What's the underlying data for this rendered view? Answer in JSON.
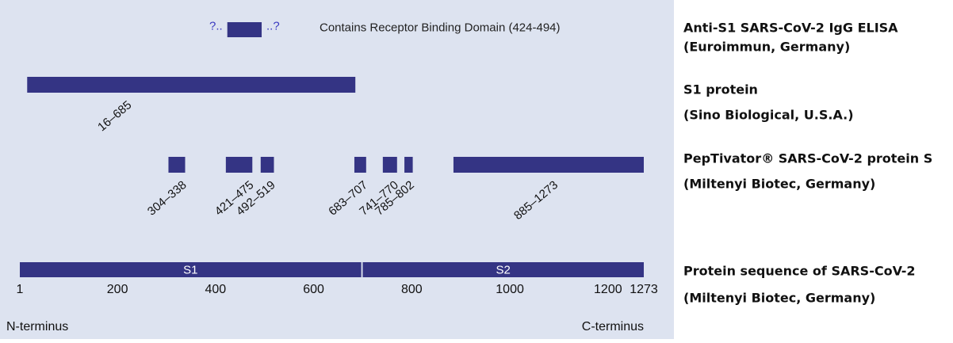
{
  "chart_data": {
    "type": "range",
    "xlim": [
      1,
      1273
    ],
    "xticks": [
      1,
      200,
      400,
      600,
      800,
      1000,
      1200,
      1273
    ],
    "color": "#343484",
    "n_label": "N-terminus",
    "c_label": "C-terminus",
    "rows": [
      {
        "title": "Anti-S1 SARS-CoV-2 IgG ELISA",
        "subtitle": "(Euroimmun, Germany)",
        "note": "Contains Receptor Binding Domain (424-494)",
        "prefix": "?..",
        "suffix": "..?",
        "ranges": [
          {
            "start": 424,
            "end": 494
          }
        ]
      },
      {
        "title": "S1 protein",
        "subtitle": "(Sino Biological, U.S.A.)",
        "ranges": [
          {
            "start": 16,
            "end": 685,
            "label": "16–685"
          }
        ]
      },
      {
        "title": "PepTivator® SARS-CoV-2 protein S",
        "subtitle": "(Miltenyi Biotec, Germany)",
        "ranges": [
          {
            "start": 304,
            "end": 338,
            "label": "304–338"
          },
          {
            "start": 421,
            "end": 475,
            "label": "421–475"
          },
          {
            "start": 492,
            "end": 519,
            "label": "492–519"
          },
          {
            "start": 683,
            "end": 707,
            "label": "683–707"
          },
          {
            "start": 741,
            "end": 770,
            "label": "741–770"
          },
          {
            "start": 785,
            "end": 802,
            "label": "785–802"
          },
          {
            "start": 885,
            "end": 1273,
            "label": "885–1273"
          }
        ]
      },
      {
        "title": "Protein sequence of SARS-CoV-2",
        "subtitle": "(Miltenyi Biotec, Germany)",
        "ranges": [
          {
            "start": 1,
            "end": 697,
            "name": "S1"
          },
          {
            "start": 700,
            "end": 1273,
            "name": "S2"
          }
        ]
      }
    ]
  }
}
